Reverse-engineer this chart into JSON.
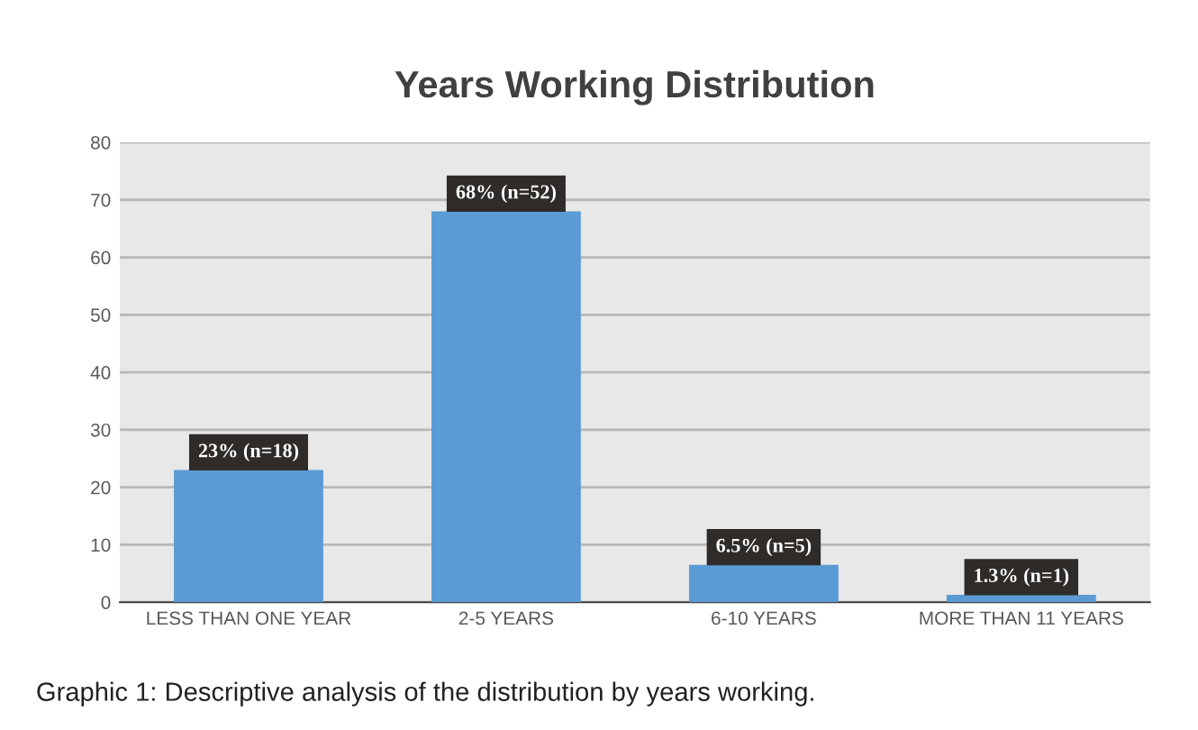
{
  "chart_data": {
    "type": "bar",
    "title": "Years Working Distribution",
    "categories": [
      "LESS THAN ONE YEAR",
      "2-5 YEARS",
      "6-10 YEARS",
      "MORE THAN 11 YEARS"
    ],
    "values": [
      23,
      68,
      6.5,
      1.3
    ],
    "value_labels": [
      "23% (n=18)",
      "68% (n=52)",
      "6.5% (n=5)",
      "1.3% (n=1)"
    ],
    "color": "#5b9bd5",
    "ylim": [
      0,
      80
    ],
    "yticks": [
      0,
      10,
      20,
      30,
      40,
      50,
      60,
      70,
      80
    ],
    "grid": "y",
    "annotations": [
      "Graphic 1: Descriptive analysis of the distribution by years working."
    ]
  }
}
